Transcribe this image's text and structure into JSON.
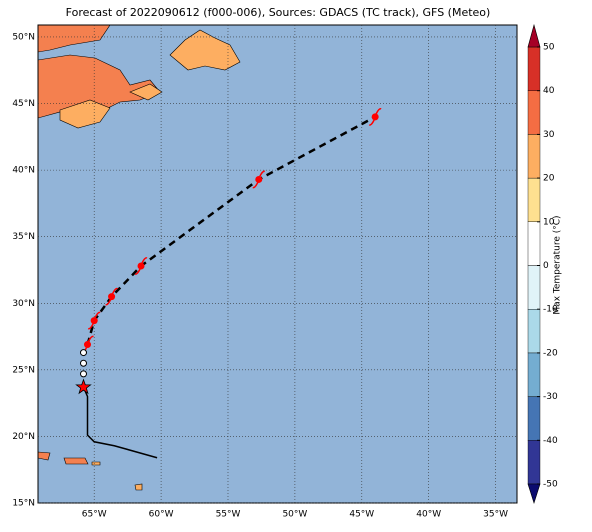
{
  "chart_data": {
    "type": "map",
    "title": "Forecast of 2022090612 (f000-006), Sources: GDACS (TC track), GFS (Meteo)",
    "xlim": [
      -69.2,
      -33.4
    ],
    "ylim": [
      15,
      50.9
    ],
    "xticks": [
      {
        "value": -65,
        "label": "65°W"
      },
      {
        "value": -60,
        "label": "60°W"
      },
      {
        "value": -55,
        "label": "55°W"
      },
      {
        "value": -50,
        "label": "50°W"
      },
      {
        "value": -45,
        "label": "45°W"
      },
      {
        "value": -40,
        "label": "40°W"
      },
      {
        "value": -35,
        "label": "35°W"
      }
    ],
    "yticks": [
      {
        "value": 15,
        "label": "15°N"
      },
      {
        "value": 20,
        "label": "20°N"
      },
      {
        "value": 25,
        "label": "25°N"
      },
      {
        "value": 30,
        "label": "30°N"
      },
      {
        "value": 35,
        "label": "35°N"
      },
      {
        "value": 40,
        "label": "40°N"
      },
      {
        "value": 45,
        "label": "45°N"
      },
      {
        "value": 50,
        "label": "50°N"
      }
    ],
    "grid": true,
    "forecast_track": {
      "lon": [
        -65.5,
        -65,
        -63.7,
        -61.5,
        -52.7,
        -44
      ],
      "lat": [
        26.9,
        28.7,
        30.5,
        32.8,
        39.3,
        44
      ],
      "color": "#ff0000"
    },
    "past_track": {
      "lon": [
        -60.3,
        -63.5,
        -65,
        -65.5,
        -65.5,
        -65.8
      ],
      "lat": [
        18.4,
        19.3,
        19.6,
        20.1,
        23,
        23.7
      ]
    },
    "colorbar": {
      "label": "Max Temperature (°C)",
      "lim": [
        -50,
        50
      ],
      "ticks": [
        -50,
        -40,
        -30,
        -20,
        -10,
        0,
        10,
        20,
        30,
        40,
        50
      ],
      "colors": [
        "#313695",
        "#4575b4",
        "#74add1",
        "#abd9e9",
        "#e0f3f8",
        "#ffffff",
        "#fee090",
        "#fdae61",
        "#f46d43",
        "#d73027",
        "#a50026"
      ]
    }
  }
}
